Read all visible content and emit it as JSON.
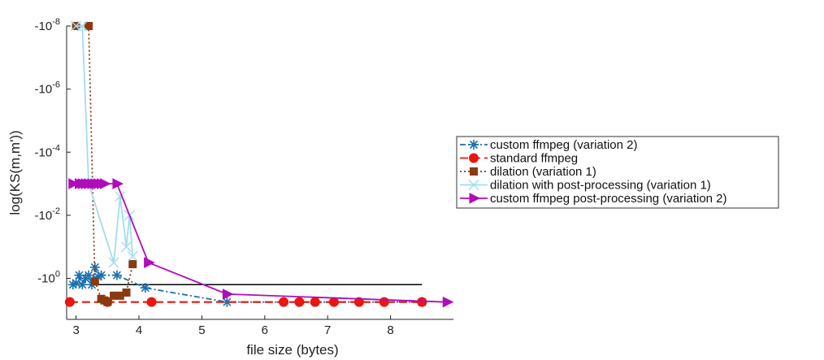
{
  "chart_data": {
    "type": "line",
    "xlabel": "file size (bytes)",
    "ylabel": "log(KS(m,m'))",
    "xlim": [
      2.85,
      9.0
    ],
    "x_ticks": [
      "3",
      "4",
      "5",
      "6",
      "7",
      "8"
    ],
    "y_ticks": [
      "-10^-8",
      "-10^-6",
      "-10^-4",
      "-10^-2",
      "-10^0"
    ],
    "y_tick_labels": [
      {
        "base": "-10",
        "exp": "-8"
      },
      {
        "base": "-10",
        "exp": "-6"
      },
      {
        "base": "-10",
        "exp": "-4"
      },
      {
        "base": "-10",
        "exp": "-2"
      },
      {
        "base": "-10",
        "exp": "0"
      }
    ],
    "y_note": "values are log-axis exponents (e.g. -8 means -10^-8)",
    "ylim_exponent": [
      -8,
      1.3
    ],
    "grid": false,
    "legend_position": "right",
    "reference_line_y": 0.2,
    "series": [
      {
        "name": "custom ffmpeg (variation 2)",
        "color": "#1a6faf",
        "marker": "asterisk",
        "dash": "7,3,2,3",
        "x": [
          2.95,
          3.0,
          3.05,
          3.1,
          3.15,
          3.2,
          3.25,
          3.3,
          3.35,
          3.4,
          3.65,
          4.1,
          5.4,
          8.5
        ],
        "y": [
          0.2,
          0.15,
          -0.1,
          0.2,
          0.0,
          -0.1,
          0.2,
          -0.35,
          -0.05,
          -0.1,
          -0.1,
          0.3,
          0.75,
          0.75
        ]
      },
      {
        "name": "standard ffmpeg",
        "color": "#e8170f",
        "marker": "circle",
        "dash": "10,5",
        "x": [
          2.9,
          3.5,
          4.2,
          6.3,
          6.55,
          6.8,
          7.1,
          7.5,
          7.9,
          8.5
        ],
        "y": [
          0.75,
          0.75,
          0.75,
          0.75,
          0.75,
          0.75,
          0.75,
          0.75,
          0.75,
          0.75
        ]
      },
      {
        "name": "dilation (variation 1)",
        "color": "#8b3a0f",
        "marker": "square",
        "dash": "2,3",
        "x": [
          3.0,
          3.2,
          3.3,
          3.4,
          3.45,
          3.5,
          3.6,
          3.7,
          3.8,
          3.9
        ],
        "y": [
          -8.0,
          -8.0,
          0.1,
          0.65,
          0.7,
          0.75,
          0.55,
          0.55,
          0.45,
          -0.45
        ]
      },
      {
        "name": "dilation with post-processing (variation 1)",
        "color": "#a3dcef",
        "marker": "x",
        "dash": "",
        "x": [
          3.0,
          3.1,
          3.2,
          3.6,
          3.7,
          3.8,
          3.85,
          3.9
        ],
        "y": [
          -8.0,
          -8.0,
          -3.0,
          -0.5,
          -2.6,
          -1.0,
          -2.0,
          -0.7
        ]
      },
      {
        "name": "custom ffmpeg post-processing (variation 2)",
        "color": "#b00cbb",
        "marker": "triangle-right",
        "dash": "",
        "x": [
          2.95,
          3.05,
          3.1,
          3.15,
          3.2,
          3.25,
          3.3,
          3.35,
          3.4,
          3.45,
          3.65,
          4.15,
          5.4,
          8.9
        ],
        "y": [
          -3.0,
          -3.0,
          -3.0,
          -3.0,
          -3.0,
          -3.0,
          -3.0,
          -3.0,
          -3.0,
          -3.0,
          -3.0,
          -0.5,
          0.5,
          0.75
        ]
      }
    ]
  }
}
